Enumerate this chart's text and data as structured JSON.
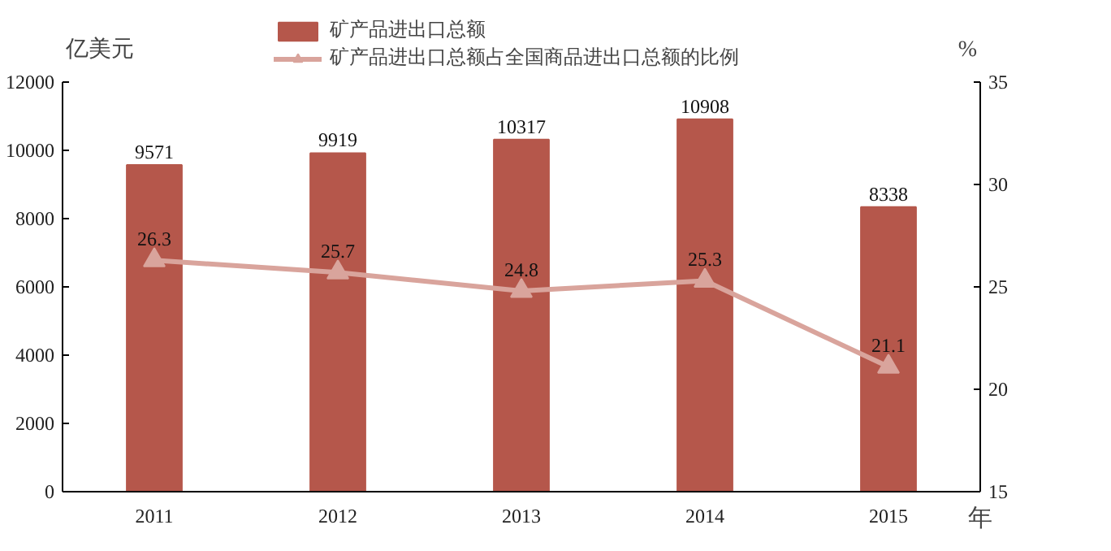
{
  "chart_data": {
    "type": "bar",
    "categories": [
      "2011",
      "2012",
      "2013",
      "2014",
      "2015"
    ],
    "xlabel": "年",
    "ylabel": "亿美元",
    "y2label": "%",
    "ylim": [
      0,
      12000
    ],
    "yticks": [
      0,
      2000,
      4000,
      6000,
      8000,
      10000,
      12000
    ],
    "y2lim": [
      15,
      35
    ],
    "y2ticks": [
      15,
      20,
      25,
      30,
      35
    ],
    "legend": "top",
    "data_labels": true,
    "grid": false,
    "marker": "triangle",
    "series": [
      {
        "name": "矿产品进出口总额",
        "color": "#b5574b",
        "values": [
          9571,
          9919,
          10317,
          10908,
          8338
        ]
      },
      {
        "name": "矿产品进出口总额占全国商品进出口总额的比例",
        "type": "line",
        "axis": "y2",
        "color": "#d9a49c",
        "values": [
          26.3,
          25.7,
          24.8,
          25.3,
          21.1
        ]
      }
    ]
  }
}
